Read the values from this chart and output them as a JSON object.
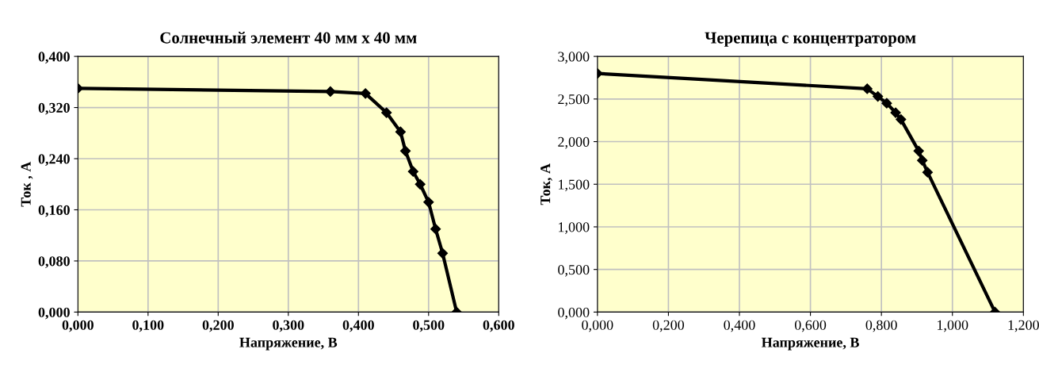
{
  "chart_data": [
    {
      "type": "line",
      "title": "Солнечный элемент 40 мм х 40 мм",
      "xlabel": "Напряжение, В",
      "ylabel": "Ток , А",
      "x": [
        0.0,
        0.36,
        0.41,
        0.44,
        0.46,
        0.467,
        0.478,
        0.488,
        0.5,
        0.51,
        0.52,
        0.54
      ],
      "series": [
        {
          "color": "#000000",
          "values": [
            0.35,
            0.345,
            0.342,
            0.312,
            0.282,
            0.252,
            0.22,
            0.2,
            0.172,
            0.13,
            0.092,
            0.0
          ]
        }
      ],
      "xlim": [
        0,
        0.6
      ],
      "ylim": [
        0,
        0.4
      ],
      "xticks": [
        {
          "value": 0,
          "label": "0,000"
        },
        {
          "value": 0.1,
          "label": "0,100"
        },
        {
          "value": 0.2,
          "label": "0,200"
        },
        {
          "value": 0.3,
          "label": "0,300"
        },
        {
          "value": 0.4,
          "label": "0,400"
        },
        {
          "value": 0.5,
          "label": "0,500"
        },
        {
          "value": 0.6,
          "label": "0,600"
        }
      ],
      "yticks": [
        {
          "value": 0,
          "label": "0,000"
        },
        {
          "value": 0.08,
          "label": "0,080"
        },
        {
          "value": 0.16,
          "label": "0,160"
        },
        {
          "value": 0.24,
          "label": "0,240"
        },
        {
          "value": 0.32,
          "label": "0,320"
        },
        {
          "value": 0.4,
          "label": "0,400"
        }
      ],
      "grid": true,
      "marker": "diamond",
      "line_style": "solid"
    },
    {
      "type": "line",
      "title": "Черепица с концентратором",
      "xlabel": "Напряжение, В",
      "ylabel": "Ток, А",
      "x": [
        0.0,
        0.76,
        0.79,
        0.815,
        0.84,
        0.855,
        0.905,
        0.915,
        0.93,
        1.12
      ],
      "series": [
        {
          "color": "#000000",
          "values": [
            2.8,
            2.62,
            2.53,
            2.45,
            2.34,
            2.26,
            1.89,
            1.78,
            1.64,
            0.0
          ]
        }
      ],
      "xlim": [
        0,
        1.2
      ],
      "ylim": [
        0,
        3
      ],
      "xticks": [
        {
          "value": 0,
          "label": "0,000"
        },
        {
          "value": 0.2,
          "label": "0,200"
        },
        {
          "value": 0.4,
          "label": "0,400"
        },
        {
          "value": 0.6,
          "label": "0,600"
        },
        {
          "value": 0.8,
          "label": "0,800"
        },
        {
          "value": 1.0,
          "label": "1,000"
        },
        {
          "value": 1.2,
          "label": "1,200"
        }
      ],
      "yticks": [
        {
          "value": 0,
          "label": "0,000"
        },
        {
          "value": 0.5,
          "label": "0,500"
        },
        {
          "value": 1.0,
          "label": "1,000"
        },
        {
          "value": 1.5,
          "label": "1,500"
        },
        {
          "value": 2.0,
          "label": "2,000"
        },
        {
          "value": 2.5,
          "label": "2,500"
        },
        {
          "value": 3.0,
          "label": "3,000"
        }
      ],
      "grid": true,
      "marker": "diamond",
      "line_style": "solid"
    }
  ]
}
